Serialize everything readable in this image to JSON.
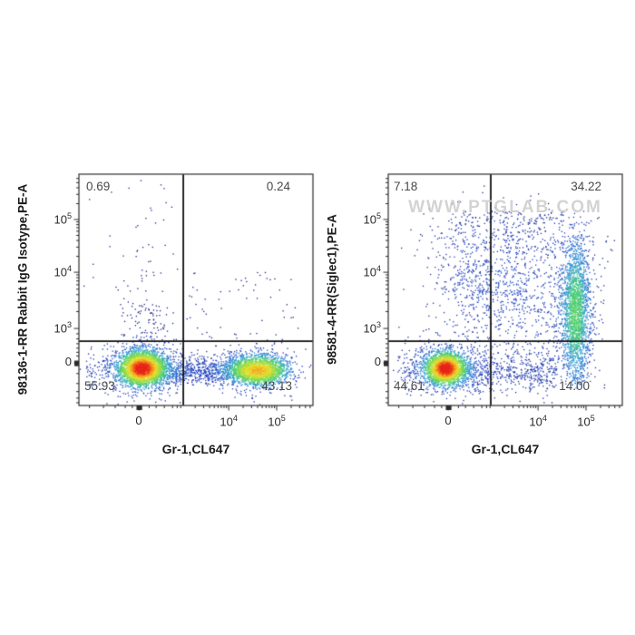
{
  "figure": {
    "background": "#ffffff"
  },
  "watermark": {
    "text": "WWW.PTGLAB.COM"
  },
  "colors": {
    "border": "#3d3d3d",
    "gate_line": "#111111",
    "tick": "#2b2b2b",
    "quadrant_text": "#4a4a4a",
    "axis_title_text": "#1a1a1a",
    "watermark_text": "#c9c9c9",
    "density_scale": [
      "#1a2082",
      "#2140be",
      "#2d96d7",
      "#46cf6e",
      "#aadc37",
      "#eede2d",
      "#f2871e",
      "#e8231a"
    ]
  },
  "chart_data": {
    "type": "scatter",
    "subtype": "flow-cytometry-pseudocolor-dot-plot",
    "x_axis": {
      "label": "Gr-1,CL647",
      "scale": "biexponential",
      "ticks": [
        {
          "label": "0",
          "value": 0,
          "frac": 0.256
        },
        {
          "base": "10",
          "sup": "4",
          "value": 10000,
          "frac": 0.64
        },
        {
          "base": "10",
          "sup": "5",
          "value": 100000,
          "frac": 0.845
        }
      ]
    },
    "y_axis": {
      "scale": "biexponential",
      "ticks": [
        {
          "base": "10",
          "sup": "5",
          "value": 100000,
          "frac": 0.196
        },
        {
          "base": "10",
          "sup": "4",
          "value": 10000,
          "frac": 0.424
        },
        {
          "base": "10",
          "sup": "3",
          "value": 1000,
          "frac": 0.667
        },
        {
          "label": "0",
          "value": 0,
          "frac": 0.816
        }
      ]
    },
    "panels": [
      {
        "id": "isotype-control",
        "y_label": "98136-1-RR Rabbit IgG Isotype,PE-A",
        "x_label": "Gr-1,CL647",
        "gate": {
          "x_frac": 0.446,
          "y_frac": 0.722
        },
        "quadrants": {
          "upper_left": "0.69",
          "upper_right": "0.24",
          "lower_left": "55.93",
          "lower_right": "43.13"
        },
        "populations": [
          {
            "label": "Gr-1 negative cells",
            "kind": "gauss",
            "n": 2800,
            "cx": 0.27,
            "cy": 0.84,
            "sx": 0.048,
            "sy": 0.036
          },
          {
            "label": "Gr-1 negative halo",
            "kind": "gauss",
            "n": 520,
            "cx": 0.27,
            "cy": 0.842,
            "sx": 0.095,
            "sy": 0.062
          },
          {
            "label": "intermediate bridge",
            "kind": "hband",
            "n": 780,
            "x0": 0.31,
            "x1": 0.72,
            "cy": 0.85,
            "sy": 0.03
          },
          {
            "label": "Gr-1 positive cells",
            "kind": "gauss",
            "n": 1900,
            "cx": 0.765,
            "cy": 0.848,
            "sx": 0.062,
            "sy": 0.031
          },
          {
            "label": "Gr-1 positive halo",
            "kind": "gauss",
            "n": 380,
            "cx": 0.76,
            "cy": 0.848,
            "sx": 0.095,
            "sy": 0.055
          },
          {
            "label": "left tail",
            "kind": "hband",
            "n": 70,
            "x0": 0.03,
            "x1": 0.17,
            "cy": 0.848,
            "sy": 0.038
          },
          {
            "label": "debris above negatives",
            "kind": "gauss",
            "n": 130,
            "cx": 0.295,
            "cy": 0.66,
            "sx": 0.055,
            "sy": 0.095,
            "nokernel": true
          },
          {
            "label": "sparse upper-left events",
            "kind": "spray",
            "n": 42,
            "cx": 0.28,
            "sx": 0.1,
            "y0": 0.02,
            "y1": 0.56
          },
          {
            "label": "sparse events above gate right",
            "kind": "sprayu",
            "n": 55,
            "x0": 0.46,
            "x1": 0.96,
            "y0": 0.42,
            "y1": 0.715
          }
        ]
      },
      {
        "id": "siglec1-stain",
        "y_label": "98581-4-RR(Siglec1),PE-A",
        "x_label": "Gr-1,CL647",
        "gate": {
          "x_frac": 0.438,
          "y_frac": 0.722
        },
        "quadrants": {
          "upper_left": "7.18",
          "upper_right": "34.22",
          "lower_left": "44.61",
          "lower_right": "14.00"
        },
        "populations": [
          {
            "label": "Siglec1- Gr-1- cells",
            "kind": "gauss",
            "n": 2500,
            "cx": 0.245,
            "cy": 0.84,
            "sx": 0.042,
            "sy": 0.034
          },
          {
            "label": "negative halo",
            "kind": "gauss",
            "n": 450,
            "cx": 0.248,
            "cy": 0.842,
            "sx": 0.085,
            "sy": 0.06
          },
          {
            "label": "Siglec1+ Gr-1+ band",
            "kind": "vband",
            "n": 1750,
            "cx": 0.8,
            "sx": 0.03,
            "cy": 0.6,
            "sy": 0.165,
            "y0": 0.205,
            "y1": 0.915
          },
          {
            "label": "band halo",
            "kind": "vband",
            "n": 420,
            "cx": 0.795,
            "sx": 0.058,
            "cy": 0.58,
            "sy": 0.205,
            "y0": 0.18,
            "y1": 0.93
          },
          {
            "label": "Siglec1+ Gr-1- cloud",
            "kind": "gauss",
            "n": 460,
            "cx": 0.36,
            "cy": 0.46,
            "sx": 0.095,
            "sy": 0.155
          },
          {
            "label": "middle double-positive cloud",
            "kind": "gauss",
            "n": 600,
            "cx": 0.57,
            "cy": 0.52,
            "sx": 0.115,
            "sy": 0.16
          },
          {
            "label": "top spray",
            "kind": "spray",
            "n": 270,
            "cx": 0.55,
            "sx": 0.17,
            "y0": 0.16,
            "y1": 0.34
          },
          {
            "label": "bottom bridge",
            "kind": "hband",
            "n": 480,
            "x0": 0.32,
            "x1": 0.72,
            "cy": 0.858,
            "sy": 0.045
          },
          {
            "label": "left tail",
            "kind": "hband",
            "n": 80,
            "x0": 0.04,
            "x1": 0.16,
            "cy": 0.848,
            "sy": 0.04
          }
        ]
      }
    ]
  }
}
